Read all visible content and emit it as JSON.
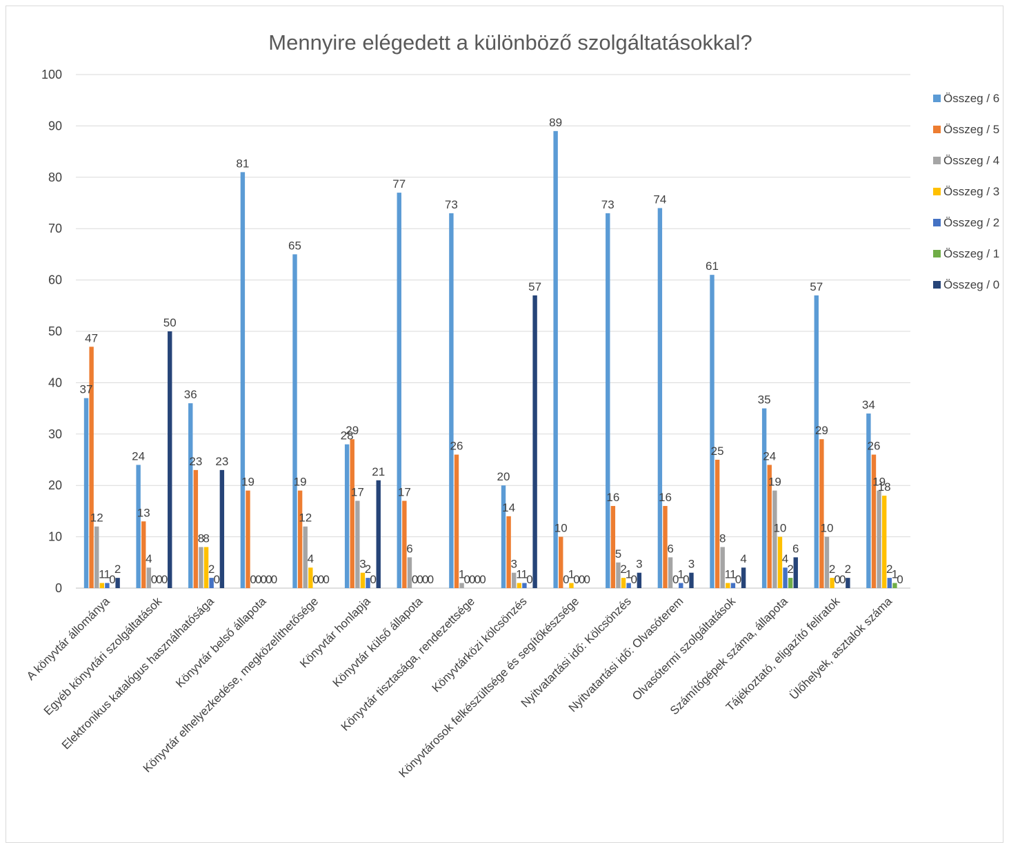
{
  "chart_data": {
    "type": "bar",
    "title": "Mennyire elégedett a különböző szolgáltatásokkal?",
    "xlabel": "",
    "ylabel": "",
    "ylim": [
      0,
      100
    ],
    "yticks": [
      0,
      10,
      20,
      30,
      40,
      50,
      60,
      70,
      80,
      90,
      100
    ],
    "grid": true,
    "legend_position": "right",
    "categories": [
      "A könyvtár állománya",
      "Egyéb könyvtári szolgáltatások",
      "Elektronikus katalógus használhatósága",
      "Könyvtár belső állapota",
      "Könyvtár elhelyezkedése, megközelíthetősége",
      "Könyvtár honlapja",
      "Könyvtár külső állapota",
      "Könyvtár tisztasága, rendezettsége",
      "Könyvtárközi kölcsönzés",
      "Könyvtárosok felkészültsége és segítőkészsége",
      "Nyitvatartási idő: Kölcsönzés",
      "Nyitvatartási idő: Olvasóterem",
      "Olvasótermi szolgáltatások",
      "Számítógépek száma, állapota",
      "Tájékoztató, eligazító feliratok",
      "Ülőhelyek, asztalok száma"
    ],
    "series": [
      {
        "name": "Összeg / 6",
        "color": "#5b9bd5",
        "values": [
          37,
          24,
          36,
          81,
          65,
          28,
          77,
          73,
          20,
          89,
          73,
          74,
          61,
          35,
          57,
          34
        ]
      },
      {
        "name": "Összeg / 5",
        "color": "#ed7d31",
        "values": [
          47,
          13,
          23,
          19,
          19,
          29,
          17,
          26,
          14,
          10,
          16,
          16,
          25,
          24,
          29,
          26
        ]
      },
      {
        "name": "Összeg / 4",
        "color": "#a5a5a5",
        "values": [
          12,
          4,
          8,
          0,
          12,
          17,
          6,
          1,
          3,
          0,
          5,
          6,
          8,
          19,
          10,
          19
        ]
      },
      {
        "name": "Összeg / 3",
        "color": "#ffc000",
        "values": [
          1,
          0,
          8,
          0,
          4,
          3,
          0,
          0,
          1,
          1,
          2,
          0,
          1,
          10,
          2,
          18
        ]
      },
      {
        "name": "Összeg / 2",
        "color": "#4472c4",
        "values": [
          1,
          0,
          2,
          0,
          0,
          2,
          0,
          0,
          1,
          0,
          1,
          1,
          1,
          4,
          0,
          2
        ]
      },
      {
        "name": "Összeg / 1",
        "color": "#70ad47",
        "values": [
          0,
          0,
          0,
          0,
          0,
          0,
          0,
          0,
          0,
          0,
          0,
          0,
          0,
          2,
          0,
          1
        ]
      },
      {
        "name": "Összeg / 0",
        "color": "#264478",
        "values": [
          2,
          50,
          23,
          0,
          0,
          21,
          0,
          0,
          57,
          0,
          3,
          3,
          4,
          6,
          2,
          0
        ]
      }
    ]
  }
}
